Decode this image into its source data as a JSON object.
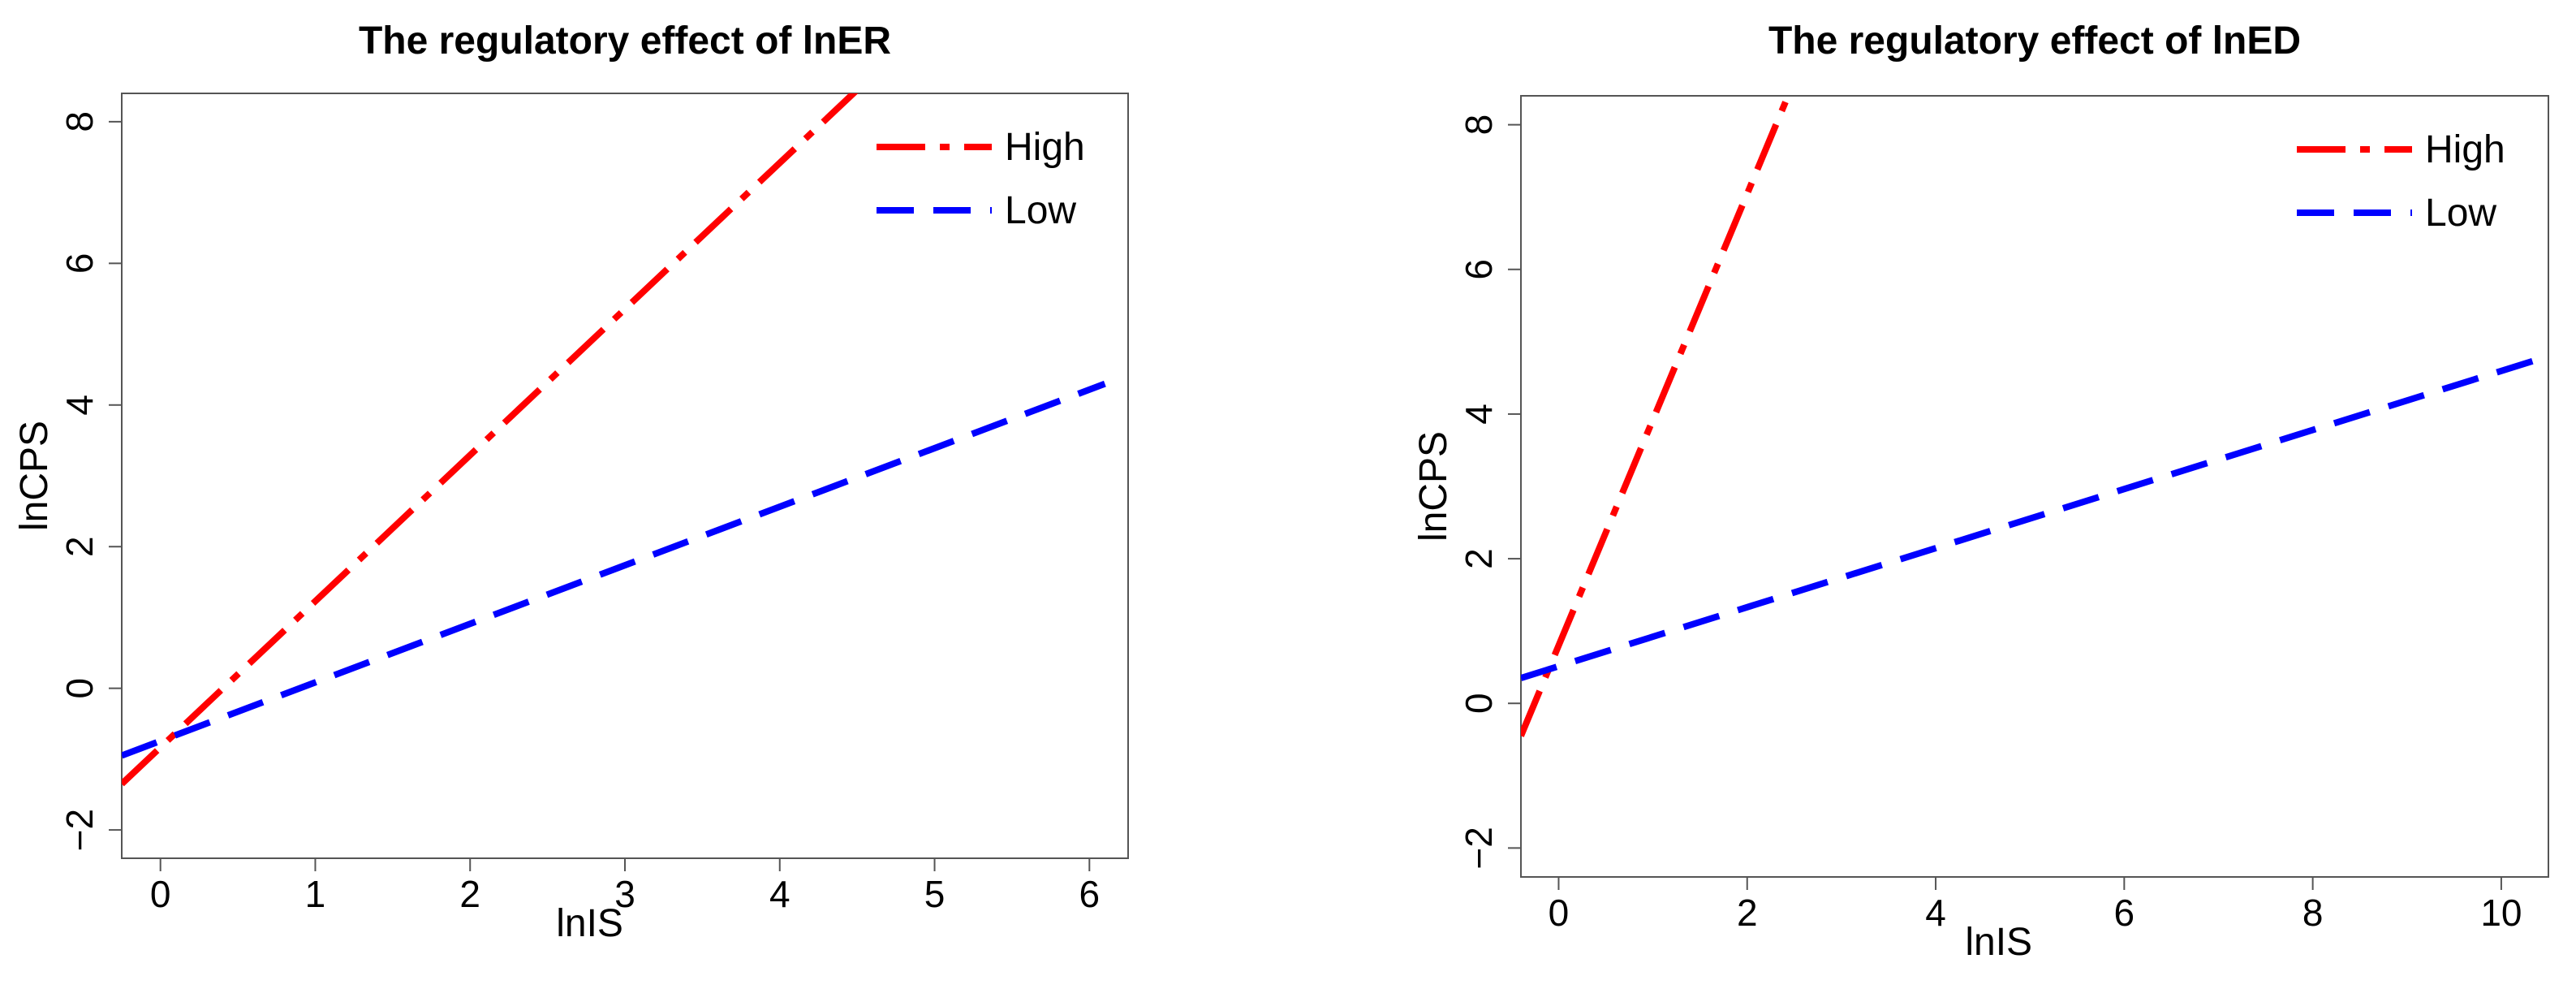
{
  "chart_data": [
    {
      "type": "line",
      "title": "The regulatory effect of lnER",
      "xlabel": "lnIS",
      "ylabel": "lnCPS",
      "xlim": [
        -0.25,
        6.25
      ],
      "ylim": [
        -2.4,
        8.4
      ],
      "xticks": [
        0,
        1,
        2,
        3,
        4,
        5,
        6
      ],
      "yticks": [
        -2,
        0,
        2,
        4,
        6,
        8
      ],
      "xtick_labels": [
        "0",
        "1",
        "2",
        "3",
        "4",
        "5",
        "6"
      ],
      "ytick_labels": [
        "−2",
        "0",
        "2",
        "4",
        "6",
        "8"
      ],
      "legend_position": "top-right",
      "series": [
        {
          "name": "High",
          "color": "#ff0000",
          "style": "dashdot",
          "x": [
            -0.25,
            4.5
          ],
          "y": [
            -1.35,
            8.45
          ]
        },
        {
          "name": "Low",
          "color": "#0000ff",
          "style": "dashed",
          "x": [
            -0.25,
            6.1
          ],
          "y": [
            -0.95,
            4.3
          ]
        }
      ]
    },
    {
      "type": "line",
      "title": "The regulatory effect of lnED",
      "xlabel": "lnIS",
      "ylabel": "lnCPS",
      "xlim": [
        -0.4,
        10.5
      ],
      "ylim": [
        -2.4,
        8.4
      ],
      "xticks": [
        0,
        2,
        4,
        6,
        8,
        10
      ],
      "yticks": [
        -2,
        0,
        2,
        4,
        6,
        8
      ],
      "xtick_labels": [
        "0",
        "2",
        "4",
        "6",
        "8",
        "10"
      ],
      "ytick_labels": [
        "−2",
        "0",
        "2",
        "4",
        "6",
        "8"
      ],
      "legend_position": "top-right",
      "series": [
        {
          "name": "High",
          "color": "#ff0000",
          "style": "dashdot",
          "x": [
            -0.4,
            2.45
          ],
          "y": [
            -0.45,
            8.45
          ]
        },
        {
          "name": "Low",
          "color": "#0000ff",
          "style": "dashed",
          "x": [
            -0.4,
            10.5
          ],
          "y": [
            0.35,
            4.8
          ]
        }
      ]
    }
  ]
}
